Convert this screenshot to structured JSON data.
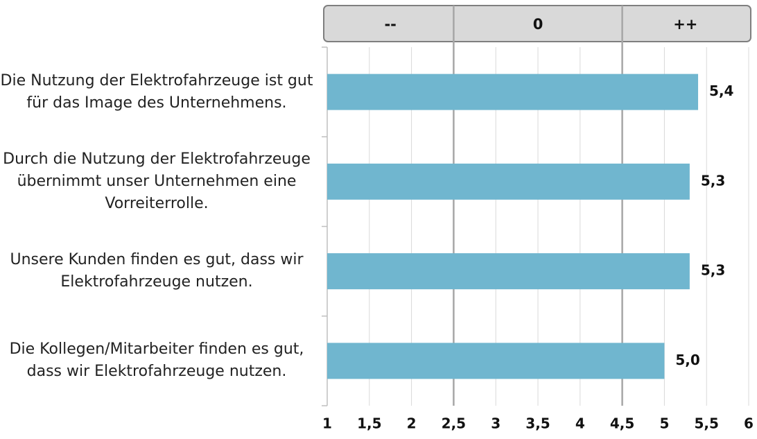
{
  "chart_data": {
    "type": "bar",
    "orientation": "horizontal",
    "categories": [
      "Die Nutzung der Elektrofahrzeuge ist gut für das Image des Unternehmens.",
      "Durch die Nutzung der Elektrofahrzeuge übernimmt unser Unternehmen eine Vorreiterrolle.",
      "Unsere Kunden finden es gut, dass wir Elektrofahrzeuge nutzen.",
      "Die Kollegen/Mitarbeiter finden es gut, dass wir Elektrofahrzeuge nutzen."
    ],
    "values": [
      5.4,
      5.3,
      5.3,
      5.0
    ],
    "value_labels": [
      "5,4",
      "5,3",
      "5,3",
      "5,0"
    ],
    "color": "#70b6cf",
    "xlim": [
      1,
      6
    ],
    "xticks": [
      1,
      {
        "value": 1.5,
        "label": "1,5"
      },
      2,
      {
        "value": 2.5,
        "label": "2,5"
      },
      3,
      {
        "value": 3.5,
        "label": "3,5"
      },
      4,
      {
        "value": 4.5,
        "label": "4,5"
      },
      5,
      {
        "value": 5.5,
        "label": "5,5"
      },
      6
    ],
    "grid": true,
    "header_bands": [
      {
        "label": "--",
        "from": 1,
        "to": 2.5
      },
      {
        "label": "0",
        "from": 2.5,
        "to": 4.5
      },
      {
        "label": "++",
        "from": 4.5,
        "to": 6
      }
    ]
  }
}
